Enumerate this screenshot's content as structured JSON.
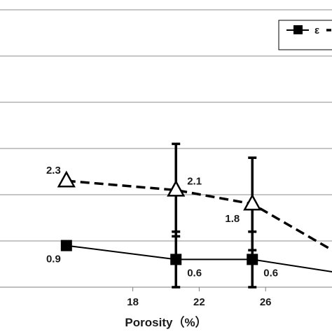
{
  "chart_data": {
    "type": "line",
    "title": "",
    "xlabel": "Porosity（%）",
    "ylabel": "",
    "xlim": [
      10,
      30
    ],
    "ylim": [
      0,
      6
    ],
    "x_ticks": [
      18,
      22,
      26
    ],
    "grid": true,
    "legend_position": "top-right",
    "series": [
      {
        "name": "ε",
        "line_style": "solid",
        "marker": "square",
        "color": "#000000",
        "points": [
          {
            "x": 14.0,
            "y": 0.9,
            "label": "0.9"
          },
          {
            "x": 20.6,
            "y": 0.6,
            "label": "0.6",
            "err": 0.6
          },
          {
            "x": 25.2,
            "y": 0.6,
            "label": "0.6",
            "err": 0.6
          }
        ]
      },
      {
        "name": "",
        "line_style": "dashed",
        "marker": "triangle-open",
        "color": "#000000",
        "points": [
          {
            "x": 14.0,
            "y": 2.3,
            "label": "2.3"
          },
          {
            "x": 20.6,
            "y": 2.1,
            "label": "2.1",
            "err": 1.0
          },
          {
            "x": 25.2,
            "y": 1.8,
            "label": "1.8",
            "err": 1.0
          }
        ]
      }
    ]
  }
}
